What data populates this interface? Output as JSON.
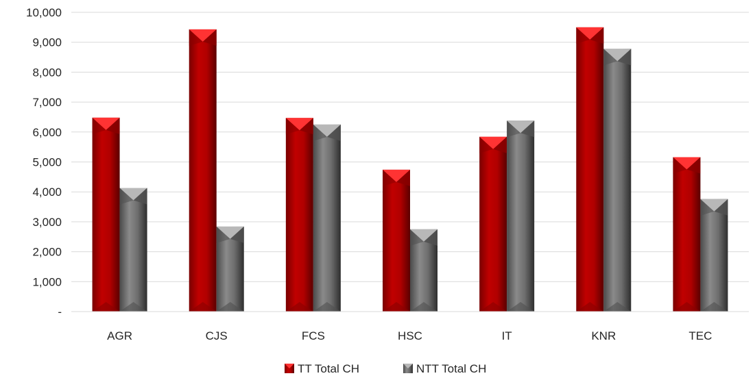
{
  "chart_data": {
    "type": "bar",
    "categories": [
      "AGR",
      "CJS",
      "FCS",
      "HSC",
      "IT",
      "KNR",
      "TEC"
    ],
    "series": [
      {
        "name": "TT Total CH",
        "values": [
          6480,
          9430,
          6470,
          4740,
          5840,
          9500,
          5160
        ],
        "color": "#C00000"
      },
      {
        "name": "NTT Total CH",
        "values": [
          4130,
          2840,
          6250,
          2750,
          6380,
          8780,
          3760
        ],
        "color": "#808080"
      }
    ],
    "ylim": [
      0,
      10000
    ],
    "yticks": [
      0,
      1000,
      2000,
      3000,
      4000,
      5000,
      6000,
      7000,
      8000,
      9000,
      10000
    ],
    "ytick_labels": [
      "-",
      "1,000",
      "2,000",
      "3,000",
      "4,000",
      "5,000",
      "6,000",
      "7,000",
      "8,000",
      "9,000",
      "10,000"
    ],
    "grid": true,
    "legend_position": "bottom"
  }
}
